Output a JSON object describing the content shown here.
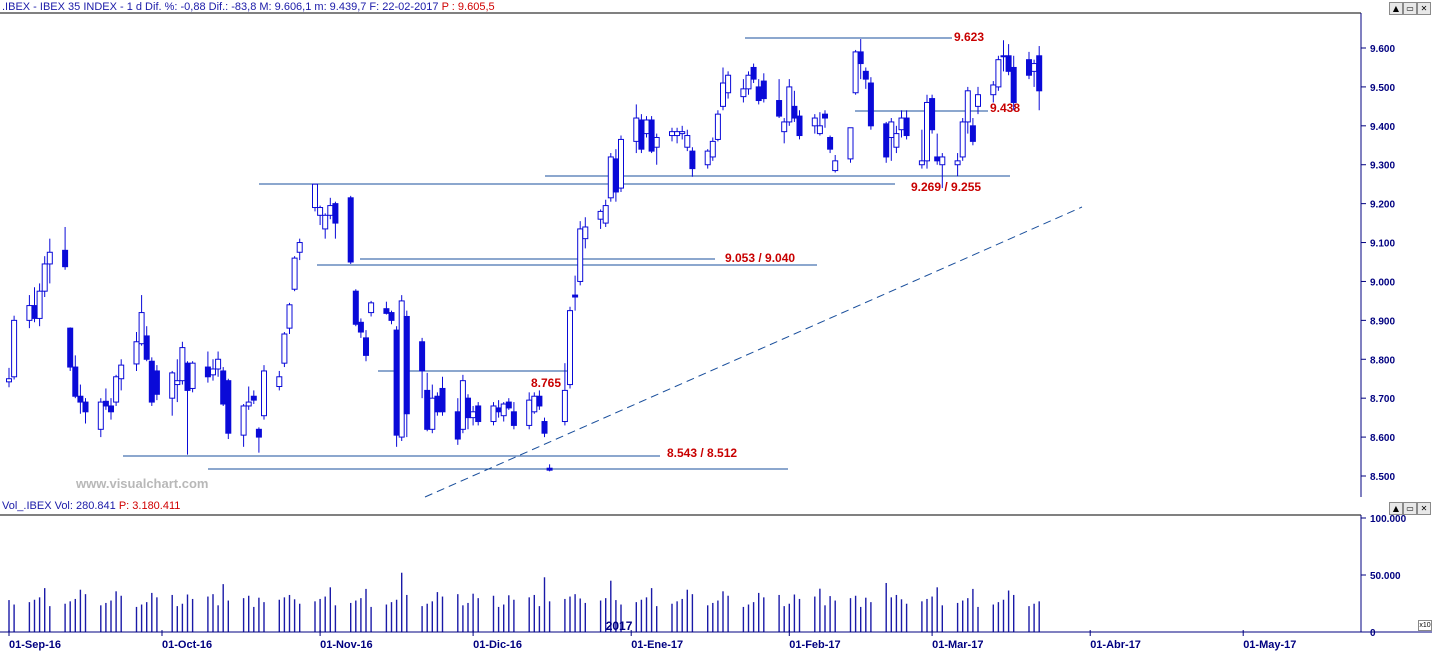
{
  "header": {
    "main": ".IBEX - IBEX 35 INDEX - 1 d Dif. %: -0,88  Dif.: -83,8  M: 9.606,1  m: 9.439,7  F: 22-02-2017",
    "price": "P : 9.605,5"
  },
  "vol_header": {
    "main": "Vol_.IBEX Vol: 280.841",
    "price": "P: 3.180.411"
  },
  "watermark": "www.visualchart.com",
  "window_buttons": [
    "▲",
    "▭",
    "✕"
  ],
  "scale_box": "x10",
  "colors": {
    "up": "#ffffff",
    "down": "#0a0ad8",
    "line": "#1a4f9c",
    "label": "#c80000",
    "axis": "#000080"
  },
  "chart_data": [
    {
      "type": "candlestick",
      "y_ticks": [
        "8.500",
        "8.600",
        "8.700",
        "8.800",
        "8.900",
        "9.000",
        "9.100",
        "9.200",
        "9.300",
        "9.400",
        "9.500",
        "9.600"
      ],
      "ylim": [
        8420,
        9680
      ],
      "x_ticks": [
        {
          "label": "01-Sep-16",
          "date": "2016-09-01"
        },
        {
          "label": "01-Oct-16",
          "date": "2016-10-01"
        },
        {
          "label": "01-Nov-16",
          "date": "2016-11-01"
        },
        {
          "label": "01-Dic-16",
          "date": "2016-12-01"
        },
        {
          "label": "01-Ene-17",
          "date": "2017-01-01"
        },
        {
          "label": "01-Feb-17",
          "date": "2017-02-01"
        },
        {
          "label": "01-Mar-17",
          "date": "2017-03-01"
        },
        {
          "label": "01-Abr-17",
          "date": "2017-04-01"
        },
        {
          "label": "01-May-17",
          "date": "2017-05-01"
        }
      ],
      "year_label": "2017",
      "candles": [
        [
          "2016-09-01",
          8742,
          8778,
          8728,
          8750
        ],
        [
          "2016-09-02",
          8755,
          8912,
          8748,
          8900
        ],
        [
          "2016-09-05",
          8900,
          8965,
          8880,
          8938
        ],
        [
          "2016-09-06",
          8938,
          8985,
          8895,
          8905
        ],
        [
          "2016-09-07",
          8905,
          8995,
          8885,
          8975
        ],
        [
          "2016-09-08",
          8975,
          9065,
          8960,
          9045
        ],
        [
          "2016-09-09",
          9045,
          9110,
          8995,
          9075
        ],
        [
          "2016-09-12",
          9080,
          9140,
          9030,
          9038
        ],
        [
          "2016-09-13",
          8880,
          8882,
          8770,
          8780
        ],
        [
          "2016-09-14",
          8780,
          8810,
          8700,
          8705
        ],
        [
          "2016-09-15",
          8705,
          8735,
          8660,
          8690
        ],
        [
          "2016-09-16",
          8690,
          8700,
          8635,
          8665
        ],
        [
          "2016-09-19",
          8620,
          8700,
          8600,
          8690
        ],
        [
          "2016-09-20",
          8692,
          8725,
          8670,
          8680
        ],
        [
          "2016-09-21",
          8680,
          8700,
          8645,
          8665
        ],
        [
          "2016-09-22",
          8690,
          8760,
          8680,
          8755
        ],
        [
          "2016-09-23",
          8750,
          8800,
          8720,
          8785
        ],
        [
          "2016-09-26",
          8788,
          8870,
          8770,
          8845
        ],
        [
          "2016-09-27",
          8840,
          8965,
          8835,
          8920
        ],
        [
          "2016-09-28",
          8860,
          8885,
          8795,
          8800
        ],
        [
          "2016-09-29",
          8795,
          8805,
          8680,
          8690
        ],
        [
          "2016-09-30",
          8770,
          8785,
          8695,
          8710
        ],
        [
          "2016-10-03",
          8700,
          8770,
          8655,
          8765
        ],
        [
          "2016-10-04",
          8735,
          8800,
          8690,
          8745
        ],
        [
          "2016-10-05",
          8745,
          8845,
          8735,
          8830
        ],
        [
          "2016-10-06",
          8790,
          8795,
          8555,
          8720
        ],
        [
          "2016-10-07",
          8725,
          8795,
          8715,
          8790
        ],
        [
          "2016-10-10",
          8780,
          8820,
          8740,
          8755
        ],
        [
          "2016-10-11",
          8760,
          8800,
          8745,
          8775
        ],
        [
          "2016-10-12",
          8775,
          8820,
          8755,
          8800
        ],
        [
          "2016-10-13",
          8770,
          8780,
          8680,
          8685
        ],
        [
          "2016-10-14",
          8745,
          8750,
          8595,
          8610
        ],
        [
          "2016-10-17",
          8605,
          8685,
          8575,
          8680
        ],
        [
          "2016-10-18",
          8680,
          8730,
          8670,
          8690
        ],
        [
          "2016-10-19",
          8705,
          8720,
          8685,
          8695
        ],
        [
          "2016-10-20",
          8620,
          8625,
          8560,
          8600
        ],
        [
          "2016-10-21",
          8655,
          8785,
          8645,
          8770
        ],
        [
          "2016-10-24",
          8730,
          8770,
          8720,
          8755
        ],
        [
          "2016-10-25",
          8790,
          8870,
          8780,
          8865
        ],
        [
          "2016-10-26",
          8880,
          8945,
          8865,
          8940
        ],
        [
          "2016-10-27",
          8980,
          9065,
          8975,
          9060
        ],
        [
          "2016-10-28",
          9075,
          9110,
          9055,
          9100
        ],
        [
          "2016-10-31",
          9190,
          9245,
          9180,
          9250
        ],
        [
          "2016-11-01",
          9170,
          9195,
          9145,
          9190
        ],
        [
          "2016-11-02",
          9135,
          9175,
          9110,
          9170
        ],
        [
          "2016-11-03",
          9170,
          9215,
          9160,
          9195
        ],
        [
          "2016-11-04",
          9200,
          9205,
          9110,
          9150
        ],
        [
          "2016-11-07",
          9215,
          9220,
          9045,
          9050
        ],
        [
          "2016-11-08",
          8975,
          8980,
          8885,
          8890
        ],
        [
          "2016-11-09",
          8895,
          8905,
          8855,
          8870
        ],
        [
          "2016-11-10",
          8855,
          8875,
          8795,
          8810
        ],
        [
          "2016-11-11",
          8920,
          8950,
          8910,
          8945
        ],
        [
          "2016-11-14",
          8930,
          8948,
          8915,
          8918
        ],
        [
          "2016-11-15",
          8920,
          8925,
          8890,
          8900
        ],
        [
          "2016-11-16",
          8875,
          8885,
          8575,
          8605
        ],
        [
          "2016-11-17",
          8600,
          8965,
          8590,
          8950
        ],
        [
          "2016-11-18",
          8910,
          8925,
          8600,
          8660
        ],
        [
          "2016-11-21",
          8845,
          8855,
          8700,
          8770
        ],
        [
          "2016-11-22",
          8720,
          8765,
          8615,
          8620
        ],
        [
          "2016-11-23",
          8620,
          8735,
          8610,
          8700
        ],
        [
          "2016-11-24",
          8705,
          8715,
          8655,
          8665
        ],
        [
          "2016-11-25",
          8725,
          8755,
          8655,
          8665
        ],
        [
          "2016-11-28",
          8665,
          8700,
          8580,
          8595
        ],
        [
          "2016-11-29",
          8620,
          8760,
          8610,
          8745
        ],
        [
          "2016-11-30",
          8700,
          8710,
          8620,
          8650
        ],
        [
          "2016-12-01",
          8650,
          8680,
          8630,
          8665
        ],
        [
          "2016-12-02",
          8680,
          8690,
          8630,
          8640
        ],
        [
          "2016-12-05",
          8640,
          8690,
          8630,
          8680
        ],
        [
          "2016-12-06",
          8675,
          8695,
          8650,
          8665
        ],
        [
          "2016-12-07",
          8655,
          8690,
          8640,
          8685
        ],
        [
          "2016-12-08",
          8690,
          8700,
          8670,
          8675
        ],
        [
          "2016-12-09",
          8665,
          8690,
          8620,
          8630
        ],
        [
          "2016-12-12",
          8630,
          8715,
          8620,
          8695
        ],
        [
          "2016-12-13",
          8665,
          8715,
          8660,
          8705
        ],
        [
          "2016-12-14",
          8705,
          8720,
          8670,
          8680
        ],
        [
          "2016-12-15",
          8640,
          8650,
          8600,
          8610
        ],
        [
          "2016-12-16",
          8520,
          8530,
          8512,
          8515
        ],
        [
          "2016-12-19",
          8640,
          8790,
          8630,
          8720
        ],
        [
          "2016-12-20",
          8735,
          8935,
          8725,
          8925
        ],
        [
          "2016-12-21",
          8965,
          9015,
          8925,
          8960
        ],
        [
          "2016-12-22",
          9000,
          9155,
          8990,
          9135
        ],
        [
          "2016-12-23",
          9110,
          9165,
          9085,
          9140
        ],
        [
          "2016-12-26",
          9160,
          9185,
          9135,
          9180
        ],
        [
          "2016-12-27",
          9150,
          9210,
          9140,
          9195
        ],
        [
          "2016-12-28",
          9215,
          9330,
          9205,
          9320
        ],
        [
          "2016-12-29",
          9315,
          9340,
          9205,
          9230
        ],
        [
          "2016-12-30",
          9240,
          9375,
          9230,
          9365
        ],
        [
          "2017-01-02",
          9360,
          9455,
          9330,
          9420
        ],
        [
          "2017-01-03",
          9415,
          9430,
          9330,
          9340
        ],
        [
          "2017-01-04",
          9380,
          9425,
          9370,
          9415
        ],
        [
          "2017-01-05",
          9415,
          9425,
          9330,
          9335
        ],
        [
          "2017-01-06",
          9345,
          9380,
          9300,
          9370
        ],
        [
          "2017-01-09",
          9375,
          9395,
          9360,
          9385
        ],
        [
          "2017-01-10",
          9375,
          9395,
          9355,
          9385
        ],
        [
          "2017-01-11",
          9380,
          9400,
          9365,
          9385
        ],
        [
          "2017-01-12",
          9345,
          9390,
          9335,
          9375
        ],
        [
          "2017-01-13",
          9335,
          9345,
          9269,
          9290
        ],
        [
          "2017-01-16",
          9300,
          9340,
          9290,
          9335
        ],
        [
          "2017-01-17",
          9320,
          9370,
          9310,
          9360
        ],
        [
          "2017-01-18",
          9365,
          9440,
          9360,
          9430
        ],
        [
          "2017-01-19",
          9450,
          9550,
          9440,
          9510
        ],
        [
          "2017-01-20",
          9485,
          9540,
          9470,
          9530
        ],
        [
          "2017-01-23",
          9475,
          9520,
          9460,
          9495
        ],
        [
          "2017-01-24",
          9495,
          9540,
          9480,
          9530
        ],
        [
          "2017-01-25",
          9550,
          9560,
          9510,
          9520
        ],
        [
          "2017-01-26",
          9500,
          9520,
          9455,
          9465
        ],
        [
          "2017-01-27",
          9515,
          9535,
          9460,
          9470
        ],
        [
          "2017-01-30",
          9465,
          9520,
          9420,
          9425
        ],
        [
          "2017-01-31",
          9385,
          9420,
          9355,
          9410
        ],
        [
          "2017-02-01",
          9410,
          9520,
          9400,
          9500
        ],
        [
          "2017-02-02",
          9450,
          9490,
          9410,
          9420
        ],
        [
          "2017-02-03",
          9425,
          9440,
          9365,
          9375
        ],
        [
          "2017-02-06",
          9400,
          9430,
          9380,
          9420
        ],
        [
          "2017-02-07",
          9380,
          9435,
          9375,
          9400
        ],
        [
          "2017-02-08",
          9430,
          9440,
          9395,
          9420
        ],
        [
          "2017-02-09",
          9370,
          9375,
          9330,
          9340
        ],
        [
          "2017-02-10",
          9285,
          9325,
          9280,
          9310
        ],
        [
          "2017-02-13",
          9315,
          9395,
          9305,
          9395
        ],
        [
          "2017-02-14",
          9485,
          9595,
          9480,
          9590
        ],
        [
          "2017-02-15",
          9590,
          9623,
          9520,
          9560
        ],
        [
          "2017-02-16",
          9540,
          9550,
          9495,
          9520
        ],
        [
          "2017-02-17",
          9510,
          9525,
          9390,
          9400
        ],
        [
          "2017-02-20",
          9405,
          9410,
          9305,
          9320
        ],
        [
          "2017-02-21",
          9370,
          9420,
          9310,
          9410
        ],
        [
          "2017-02-22",
          9345,
          9400,
          9330,
          9380
        ],
        [
          "2017-02-23",
          9390,
          9440,
          9370,
          9420
        ],
        [
          "2017-02-24",
          9420,
          9440,
          9365,
          9375
        ],
        [
          "2017-02-27",
          9300,
          9390,
          9290,
          9310
        ],
        [
          "2017-02-28",
          9310,
          9480,
          9290,
          9460
        ],
        [
          "2017-03-01",
          9470,
          9480,
          9380,
          9390
        ],
        [
          "2017-03-02",
          9320,
          9380,
          9300,
          9310
        ],
        [
          "2017-03-03",
          9300,
          9330,
          9240,
          9320
        ],
        [
          "2017-03-06",
          9300,
          9330,
          9270,
          9310
        ],
        [
          "2017-03-07",
          9320,
          9420,
          9310,
          9410
        ],
        [
          "2017-03-08",
          9410,
          9500,
          9380,
          9490
        ],
        [
          "2017-03-09",
          9400,
          9420,
          9350,
          9360
        ],
        [
          "2017-03-10",
          9450,
          9500,
          9430,
          9480
        ],
        [
          "2017-03-13",
          9480,
          9515,
          9460,
          9505
        ],
        [
          "2017-03-14",
          9500,
          9580,
          9490,
          9570
        ],
        [
          "2017-03-15",
          9580,
          9620,
          9540,
          9580
        ],
        [
          "2017-03-16",
          9580,
          9610,
          9530,
          9540
        ],
        [
          "2017-03-17",
          9550,
          9580,
          9440,
          9460
        ],
        [
          "2017-03-20",
          9570,
          9590,
          9520,
          9530
        ],
        [
          "2017-03-21",
          9540,
          9570,
          9500,
          9560
        ],
        [
          "2017-03-22",
          9580,
          9605,
          9440,
          9490
        ]
      ],
      "levels": [
        {
          "label": "9.623"
        },
        {
          "label": "9.438"
        },
        {
          "label": "9.269 / 9.255"
        },
        {
          "label": "9.053 / 9.040"
        },
        {
          "label": "8.765"
        },
        {
          "label": "8.543 / 8.512"
        }
      ],
      "trendline": {
        "style": "dashed"
      }
    },
    {
      "type": "bar",
      "name": "Vol_.IBEX",
      "y_ticks": [
        "100.000",
        "50.000",
        "0"
      ],
      "ylim": [
        0,
        100000
      ],
      "scale_note": "x10"
    }
  ]
}
